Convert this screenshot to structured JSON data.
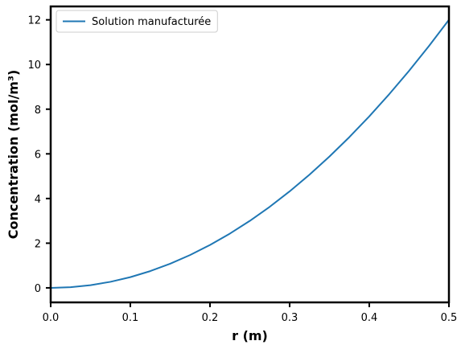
{
  "chart_data": {
    "type": "line",
    "xlabel": "r (m)",
    "ylabel": "Concentration (mol/m³)",
    "xlim": [
      0.0,
      0.5
    ],
    "ylim": [
      -0.65,
      12.6
    ],
    "x_ticks": [
      0.0,
      0.1,
      0.2,
      0.3,
      0.4,
      0.5
    ],
    "x_tick_labels": [
      "0.0",
      "0.1",
      "0.2",
      "0.3",
      "0.4",
      "0.5"
    ],
    "y_ticks": [
      0,
      2,
      4,
      6,
      8,
      10,
      12
    ],
    "y_tick_labels": [
      "0",
      "2",
      "4",
      "6",
      "8",
      "10",
      "12"
    ],
    "grid": false,
    "legend_position": "top-left",
    "series": [
      {
        "name": "Solution manufacturée",
        "color": "#1f77b4",
        "x": [
          0.0,
          0.025,
          0.05,
          0.075,
          0.1,
          0.125,
          0.15,
          0.175,
          0.2,
          0.225,
          0.25,
          0.275,
          0.3,
          0.325,
          0.35,
          0.375,
          0.4,
          0.425,
          0.45,
          0.475,
          0.5
        ],
        "y": [
          0.0,
          0.03,
          0.12,
          0.27,
          0.48,
          0.75,
          1.08,
          1.47,
          1.92,
          2.43,
          3.0,
          3.63,
          4.32,
          5.07,
          5.88,
          6.75,
          7.68,
          8.67,
          9.72,
          10.83,
          12.0
        ]
      }
    ]
  }
}
